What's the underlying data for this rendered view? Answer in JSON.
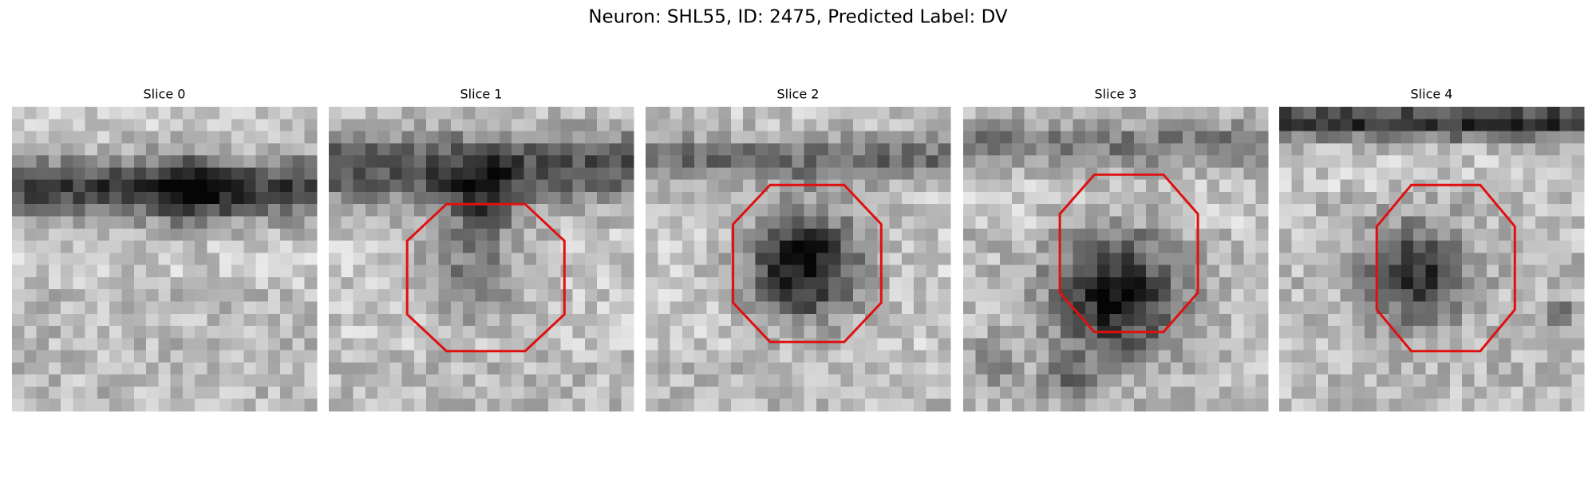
{
  "title": "Neuron: SHL55, ID: 2475, Predicted Label: DV",
  "panels": [
    {
      "title": "Slice 0"
    },
    {
      "title": "Slice 1"
    },
    {
      "title": "Slice 2"
    },
    {
      "title": "Slice 3"
    },
    {
      "title": "Slice 4"
    }
  ]
}
